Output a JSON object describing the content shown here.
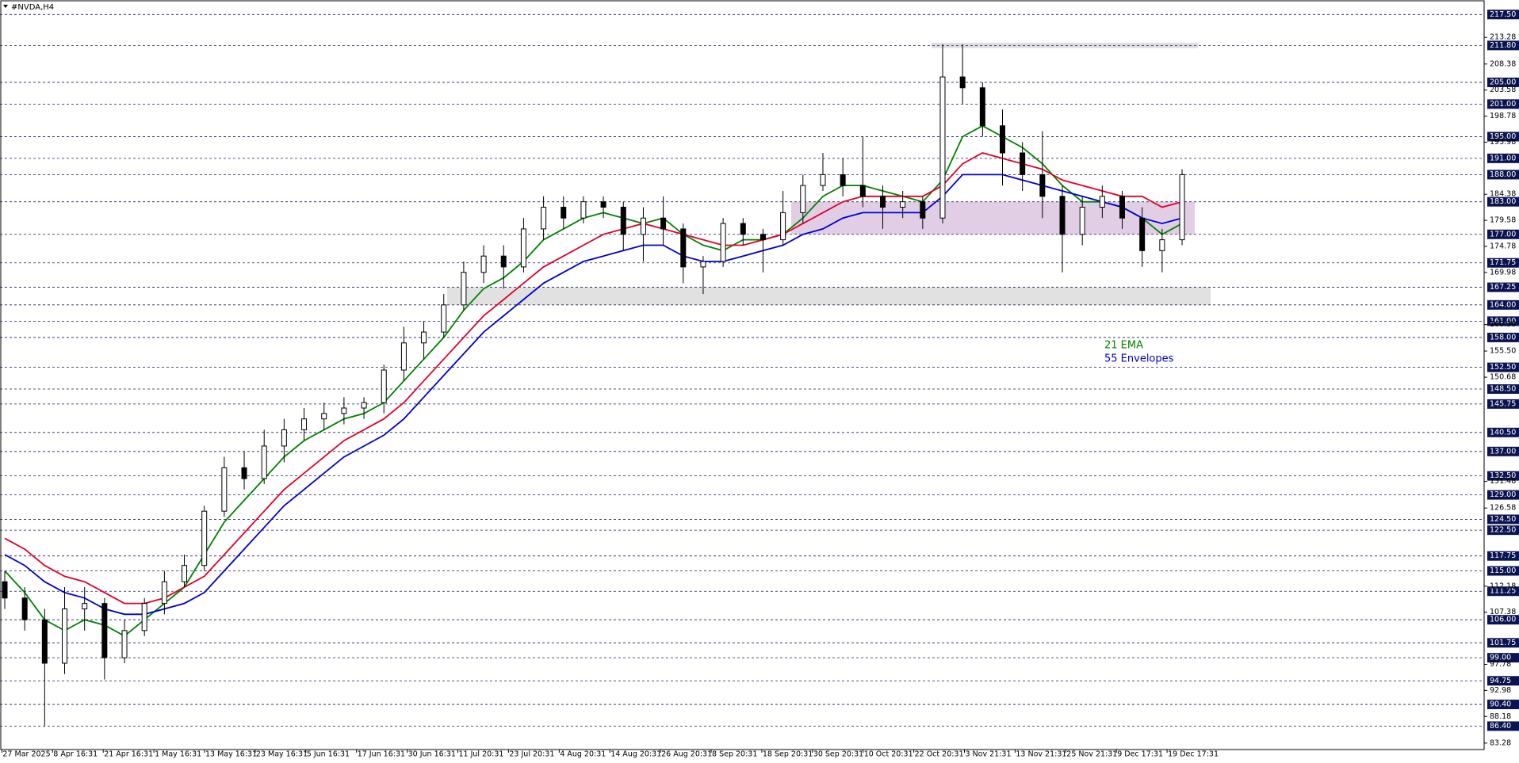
{
  "chart_data": {
    "type": "candlestick",
    "title": "#NVDA,H4",
    "x_labels": [
      "27 Mar 2025",
      "8 Apr 16:31",
      "21 Apr 16:31",
      "1 May 16:31",
      "13 May 16:31",
      "23 May 16:31",
      "5 Jun 16:31",
      "17 Jun 16:31",
      "30 Jun 16:31",
      "11 Jul 20:31",
      "23 Jul 20:31",
      "4 Aug 20:31",
      "14 Aug 20:31",
      "26 Aug 20:31",
      "8 Sep 20:31",
      "18 Sep 20:31",
      "30 Sep 20:31",
      "10 Oct 20:31",
      "22 Oct 20:31",
      "3 Nov 21:31",
      "13 Nov 21:31",
      "25 Nov 21:31",
      "9 Dec 17:31",
      "19 Dec 17:31"
    ],
    "open": [
      113,
      110,
      106,
      98,
      108,
      109,
      99,
      104,
      109,
      113,
      116,
      126,
      134,
      132,
      138,
      141,
      143,
      144,
      145,
      146,
      152,
      157,
      159,
      164,
      170,
      173,
      171,
      178,
      182,
      180,
      183,
      182,
      177,
      180,
      178,
      171,
      172,
      179,
      177,
      176,
      181,
      186,
      188,
      186,
      184,
      182,
      183,
      180,
      206,
      204,
      197,
      192,
      188,
      184,
      177,
      182,
      184,
      180,
      174,
      176
    ],
    "high": [
      115,
      112,
      108,
      112,
      112,
      110,
      106,
      110,
      115,
      118,
      127,
      136,
      137,
      141,
      143,
      145,
      146,
      147,
      147,
      153,
      160,
      161,
      166,
      172,
      175,
      175,
      180,
      184,
      184,
      184,
      184,
      183,
      182,
      184,
      179,
      173,
      180,
      180,
      178,
      185,
      188,
      192,
      191,
      195,
      186,
      185,
      184,
      212,
      212,
      205,
      200,
      194,
      196,
      186,
      184,
      186,
      185,
      182,
      178,
      189
    ],
    "low": [
      108,
      104,
      86.4,
      96,
      104,
      95,
      98,
      103,
      107,
      112,
      115,
      125,
      130,
      131,
      135,
      139,
      141,
      142,
      143,
      144,
      150,
      154,
      158,
      163,
      168,
      167,
      170,
      176,
      178,
      179,
      180,
      174,
      172,
      175,
      168,
      166,
      171,
      175,
      170,
      175,
      179,
      185,
      184,
      182,
      178,
      180,
      178,
      179,
      201,
      195,
      186,
      185,
      180,
      170,
      175,
      180,
      178,
      171,
      170,
      175
    ],
    "close": [
      110,
      106,
      98,
      108,
      109,
      99,
      104,
      109,
      113,
      116,
      126,
      134,
      132,
      138,
      141,
      143,
      144,
      145,
      146,
      152,
      157,
      159,
      164,
      170,
      173,
      171,
      178,
      182,
      180,
      183,
      182,
      177,
      180,
      178,
      171,
      172,
      179,
      177,
      176,
      181,
      186,
      188,
      186,
      184,
      182,
      183,
      180,
      206,
      204,
      197,
      192,
      188,
      184,
      177,
      182,
      184,
      180,
      174,
      176,
      188
    ],
    "series": [
      {
        "name": "21 EMA",
        "color": "#008000",
        "values": [
          115,
          111,
          106,
          104,
          106,
          105,
          103,
          106,
          109,
          112,
          118,
          124,
          128,
          132,
          136,
          139,
          141,
          143,
          144,
          146,
          150,
          154,
          158,
          163,
          167,
          169,
          172,
          176,
          178,
          180,
          181,
          180,
          179,
          180,
          177,
          175,
          174,
          176,
          176,
          177,
          180,
          184,
          186,
          186,
          185,
          184,
          183,
          187,
          195,
          197,
          195,
          193,
          190,
          186,
          183,
          183,
          182,
          180,
          177,
          179
        ]
      },
      {
        "name": "55 Envelopes",
        "color": "#0000cc",
        "values": [
          118,
          116,
          113,
          111,
          110,
          108,
          107,
          107,
          108,
          109,
          111,
          115,
          119,
          123,
          127,
          130,
          133,
          136,
          138,
          140,
          143,
          147,
          151,
          155,
          159,
          162,
          165,
          168,
          170,
          172,
          173,
          174,
          175,
          175,
          173,
          172,
          172,
          173,
          174,
          175,
          177,
          178,
          180,
          181,
          181,
          181,
          181,
          184,
          188,
          188,
          188,
          187,
          186,
          185,
          184,
          183,
          182,
          180,
          179,
          180
        ]
      },
      {
        "color": "#e0002a",
        "values": [
          121,
          119,
          116,
          114,
          113,
          111,
          109,
          109,
          110,
          112,
          114,
          118,
          122,
          126,
          130,
          133,
          136,
          139,
          141,
          143,
          146,
          150,
          154,
          158,
          162,
          165,
          168,
          171,
          173,
          175,
          177,
          178,
          179,
          178,
          177,
          176,
          175,
          175,
          176,
          177,
          179,
          181,
          183,
          184,
          184,
          184,
          184,
          186,
          190,
          192,
          191,
          190,
          189,
          187,
          186,
          185,
          184,
          184,
          182,
          183
        ]
      }
    ],
    "ylim": [
      82.09,
      219.88
    ],
    "yticks": [
      213.28,
      208.38,
      203.58,
      198.78,
      193.98,
      184.38,
      179.58,
      174.78,
      169.98,
      160.38,
      {
        "value": 155.5,
        "label": "155.50"
      },
      150.68,
      131.48,
      126.58,
      112.18,
      107.38,
      97.78,
      92.98,
      88.18,
      83.28
    ],
    "levels": [
      {
        "value": 217.5,
        "label": "217.50"
      },
      {
        "value": 211.8,
        "label": "211.80"
      },
      {
        "value": 205,
        "label": "205.00"
      },
      {
        "value": 201,
        "label": "201.00"
      },
      {
        "value": 195,
        "label": "195.00"
      },
      {
        "value": 191,
        "label": "191.00"
      },
      {
        "value": 188,
        "label": "188.00"
      },
      {
        "value": 183,
        "label": "183.00"
      },
      {
        "value": 177,
        "label": "177.00"
      },
      {
        "value": 171.75,
        "label": "171.75"
      },
      {
        "value": 167.25,
        "label": "167.25"
      },
      {
        "value": 164,
        "label": "164.00"
      },
      {
        "value": 161,
        "label": "161.00"
      },
      {
        "value": 158,
        "label": "158.00"
      },
      {
        "value": 152.5,
        "label": "152.50"
      },
      {
        "value": 148.5,
        "label": "148.50"
      },
      {
        "value": 145.75,
        "label": "145.75"
      },
      {
        "value": 140.5,
        "label": "140.50"
      },
      {
        "value": 137,
        "label": "137.00"
      },
      {
        "value": 132.5,
        "label": "132.50"
      },
      {
        "value": 129,
        "label": "129.00"
      },
      {
        "value": 124.5,
        "label": "124.50"
      },
      {
        "value": 122.5,
        "label": "122.50"
      },
      {
        "value": 117.75,
        "label": "117.75"
      },
      {
        "value": 115,
        "label": "115.00"
      },
      {
        "value": 111.25,
        "label": "111.25"
      },
      {
        "value": 106,
        "label": "106.00"
      },
      {
        "value": 101.75,
        "label": "101.75"
      },
      {
        "value": 99,
        "label": "99.00"
      },
      {
        "value": 94.75,
        "label": "94.75"
      },
      {
        "value": 90.4,
        "label": "90.40"
      },
      {
        "value": 86.4,
        "label": "86.40"
      }
    ],
    "zones": [
      {
        "low": 211.3,
        "high": 212.3,
        "color": "#d9d9d9"
      },
      {
        "low": 177,
        "high": 183,
        "color": "#dcc6e0"
      },
      {
        "low": 164,
        "high": 167.25,
        "color": "#dcdcdc"
      }
    ]
  }
}
